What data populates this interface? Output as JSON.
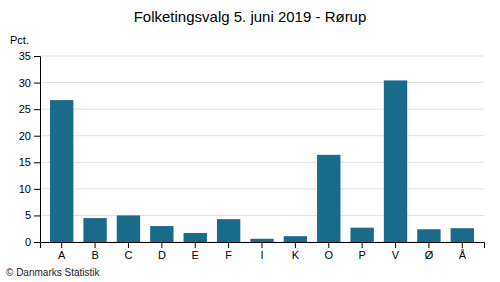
{
  "chart_data": {
    "type": "bar",
    "title": "Folketingsvalg 5. juni 2019 - Rørup",
    "categories": [
      "A",
      "B",
      "C",
      "D",
      "E",
      "F",
      "I",
      "K",
      "O",
      "P",
      "V",
      "Ø",
      "Å"
    ],
    "values": [
      26.7,
      4.5,
      5.0,
      3.0,
      1.7,
      4.3,
      0.6,
      1.1,
      16.4,
      2.7,
      30.4,
      2.4,
      2.6
    ],
    "color": "#1a6a8a",
    "ylabel": "Pct.",
    "ylim": [
      0,
      35
    ],
    "yticks": [
      0,
      5,
      10,
      15,
      20,
      25,
      30,
      35
    ],
    "grid": true,
    "annotations": [
      "© Danmarks Statistik"
    ]
  }
}
